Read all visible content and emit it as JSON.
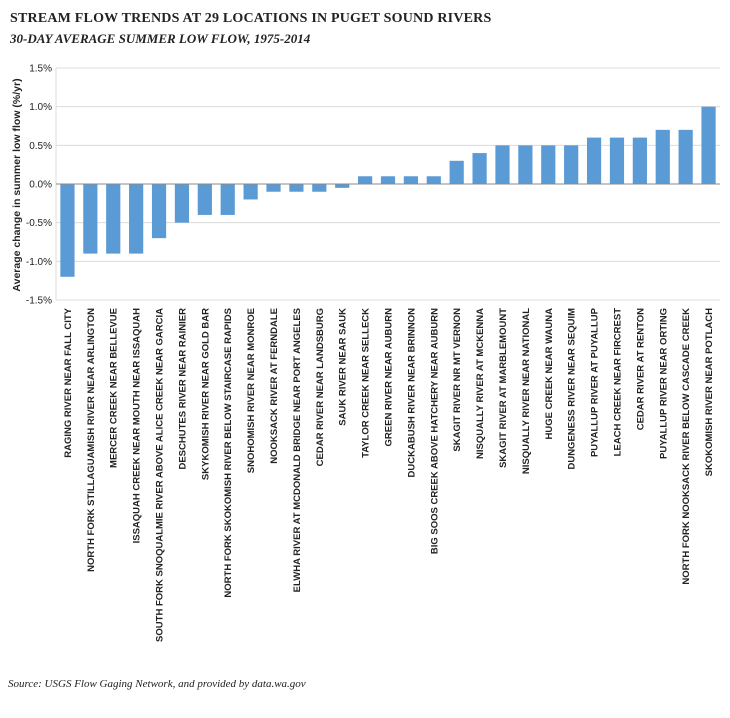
{
  "header": {
    "title": "STREAM FLOW TRENDS AT 29 LOCATIONS IN PUGET SOUND RIVERS",
    "subtitle": "30-DAY AVERAGE SUMMER LOW FLOW, 1975-2014"
  },
  "footer": {
    "source": "Source: USGS Flow Gaging Network, and provided by data.wa.gov"
  },
  "colors": {
    "bar": "#5b9bd5",
    "grid": "#dcdcdc",
    "axis": "#888888",
    "text": "#222222"
  },
  "chart_data": {
    "type": "bar",
    "title": "STREAM FLOW TRENDS AT 29 LOCATIONS IN PUGET SOUND RIVERS",
    "subtitle": "30-DAY AVERAGE SUMMER LOW FLOW, 1975-2014",
    "xlabel": "",
    "ylabel": "Average change in summer low flow (%/yr)",
    "ylim": [
      -1.5,
      1.5
    ],
    "yticks": [
      1.5,
      1.0,
      0.5,
      0.0,
      -0.5,
      -1.0,
      -1.5
    ],
    "ytick_labels": [
      "1.5%",
      "1.0%",
      "0.5%",
      "0.0%",
      "-0.5%",
      "-1.0%",
      "-1.5%"
    ],
    "grid": true,
    "legend": "none",
    "categories": [
      "RAGING RIVER NEAR FALL CITY",
      "NORTH FORK STILLAGUAMISH RIVER NEAR ARLINGTON",
      "MERCER CREEK NEAR BELLEVUE",
      "ISSAQUAH CREEK NEAR MOUTH NEAR ISSAQUAH",
      "SOUTH FORK SNOQUALMIE RIVER ABOVE ALICE CREEK NEAR GARCIA",
      "DESCHUTES RIVER NEAR RAINIER",
      "SKYKOMISH RIVER NEAR GOLD BAR",
      "NORTH FORK SKOKOMISH RIVER BELOW STAIRCASE RAPIDS",
      "SNOHOMISH RIVER NEAR MONROE",
      "NOOKSACK RIVER AT FERNDALE",
      "ELWHA RIVER AT MCDONALD BRIDGE NEAR PORT ANGELES",
      "CEDAR RIVER NEAR LANDSBURG",
      "SAUK RIVER NEAR SAUK",
      "TAYLOR CREEK NEAR SELLECK",
      "GREEN RIVER NEAR AUBURN",
      "DUCKABUSH RIVER NEAR BRINNON",
      "BIG SOOS CREEK ABOVE HATCHERY NEAR AUBURN",
      "SKAGIT RIVER NR MT VERNON",
      "NISQUALLY RIVER AT MCKENNA",
      "SKAGIT RIVER AT MARBLEMOUNT",
      "NISQUALLY RIVER NEAR NATIONAL",
      "HUGE CREEK NEAR WAUNA",
      "DUNGENESS RIVER NEAR SEQUIM",
      "PUYALLUP RIVER AT PUYALLUP",
      "LEACH CREEK NEAR FIRCREST",
      "CEDAR RIVER AT RENTON",
      "PUYALLUP RIVER NEAR ORTING",
      "NORTH FORK NOOKSACK RIVER BELOW CASCADE CREEK",
      "SKOKOMISH RIVER NEAR POTLACH"
    ],
    "values": [
      -1.2,
      -0.9,
      -0.9,
      -0.9,
      -0.7,
      -0.5,
      -0.4,
      -0.4,
      -0.2,
      -0.1,
      -0.1,
      -0.1,
      -0.05,
      0.1,
      0.1,
      0.1,
      0.1,
      0.3,
      0.4,
      0.5,
      0.5,
      0.5,
      0.5,
      0.6,
      0.6,
      0.6,
      0.7,
      0.7,
      1.0
    ]
  }
}
